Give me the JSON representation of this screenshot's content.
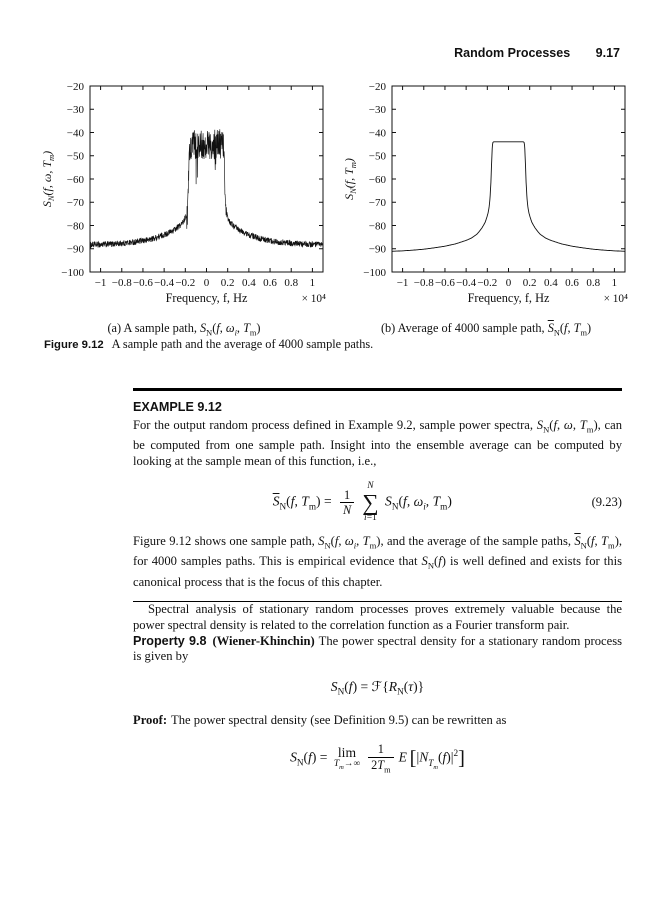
{
  "header": {
    "title": "Random Processes",
    "page_number": "9.17"
  },
  "figure_caption": {
    "label": "Figure 9.12",
    "text": "A sample path and the average of 4000 sample paths."
  },
  "example": {
    "heading": "EXAMPLE 9.12",
    "body1_html": "For the output random process defined in Example 9.2, sample power spectra, <i>S</i><sub>N</sub>(<i>f</i>, <i>ω</i>, <i>T</i><sub>m</sub>), can be computed from one sample path. Insight into the ensemble average can be computed by looking at the sample mean of this function, i.e.,",
    "eq_html": "<span class='ovl'><i>S</i></span><sub>N</sub>(<i>f</i>, <i>T</i><sub>m</sub>) = <span class='frac'><span>1</span><span><i>N</i></span></span><span class='bigop'><span class='bt'><i>N</i></span><span class='sg'>∑</span><span class='bb'><i>i</i>=1</span></span> <i>S</i><sub>N</sub>(<i>f</i>, <i>ω<sub>i</sub></i>, <i>T</i><sub>m</sub>)",
    "eq_number": "(9.23)",
    "body2_html": "Figure 9.12 shows one sample path, <i>S</i><sub>N</sub>(<i>f</i>, <i>ω<sub>i</sub></i>, <i>T</i><sub>m</sub>), and the average of the sample paths, <span class='ovl'><i>S</i></span><sub>N</sub>(<i>f</i>, <i>T</i><sub>m</sub>), for 4000 samples paths. This is empirical evidence that <i>S</i><sub>N</sub>(<i>f</i>) is well defined and exists for this canonical process that is the focus of this chapter."
  },
  "para_spectral": "Spectral analysis of stationary random processes proves extremely valuable because the power spectral density is related to the correlation function as a Fourier transform pair.",
  "property": {
    "label": "Property 9.8",
    "name": "(Wiener-Khinchin)",
    "body": "The power spectral density for a stationary random process is given by"
  },
  "eq_wiener_html": "<i>S</i><sub>N</sub>(<i>f</i>) = ℱ{<i>R</i><sub>N</sub>(<i>τ</i>)}",
  "proof": {
    "label": "Proof:",
    "body": "The power spectral density (see Definition 9.5) can be rewritten as"
  },
  "eq_psd_html": "<i>S</i><sub>N</sub>(<i>f</i>) = <span class='limop'><span>lim</span><span class='bb'><i>T<sub>m</sub></i>→∞</span></span><span class='frac'><span>1</span><span>2<i>T</i><sub>m</sub></span></span><i>E</i>&thinsp;<span class='bk'>[</span>|<i>N</i><sub><i>T<sub>m</sub></i></sub>(<i>f</i>)|<sup>2</sup><span class='bk'>]</span>",
  "chart_data": [
    {
      "type": "line",
      "series_name": "one sample power spectrum S_N(f, omega_i, T_m)",
      "xlabel": "Frequency, f, Hz",
      "x_multiplier": "× 10⁴",
      "ylabel_html": "S<sub>N</sub>(f, ω, T<sub>m</sub>)",
      "caption_html": "(a) A sample path, <i>S</i><sub>N</sub>(<i>f</i>, <i>ω<sub>i</sub></i>, <i>T</i><sub>m</sub>)",
      "xlim": [
        -1.1,
        1.1
      ],
      "ylim": [
        -100,
        -20
      ],
      "xticks": [
        -1,
        -0.8,
        -0.6,
        -0.4,
        -0.2,
        0,
        0.2,
        0.4,
        0.6,
        0.8,
        1
      ],
      "yticks": [
        -100,
        -90,
        -80,
        -70,
        -60,
        -50,
        -40,
        -30,
        -20
      ],
      "grid": false,
      "symmetric": true,
      "envelope_abs": [
        [
          0,
          -45
        ],
        [
          0.15,
          -45
        ],
        [
          0.163,
          -46
        ],
        [
          0.168,
          -52
        ],
        [
          0.172,
          -62
        ],
        [
          0.178,
          -70
        ],
        [
          0.185,
          -74
        ],
        [
          0.2,
          -76.5
        ],
        [
          0.22,
          -78.5
        ],
        [
          0.25,
          -80
        ],
        [
          0.3,
          -81.8
        ],
        [
          0.35,
          -83
        ],
        [
          0.4,
          -84
        ],
        [
          0.5,
          -85.6
        ],
        [
          0.6,
          -86.6
        ],
        [
          0.7,
          -87.2
        ],
        [
          0.8,
          -87.7
        ],
        [
          0.9,
          -88
        ],
        [
          1.0,
          -88.2
        ],
        [
          1.1,
          -88.3
        ]
      ],
      "noise": {
        "in_band_halfwidth": 0.16,
        "in_band_amp": 6.5,
        "out_band_amp": 1.3,
        "transition_zone_end": 0.19,
        "transition_spike_amp": 9,
        "deep_dip_prob": 0.02,
        "deep_dip_extra": 16
      },
      "samples": 1100
    },
    {
      "type": "line",
      "series_name": "average of 4000 sample power spectra",
      "xlabel": "Frequency, f, Hz",
      "x_multiplier": "× 10⁴",
      "ylabel_html": "S<sub>N</sub>(f, T<sub>m</sub>)",
      "caption_html": "(b) Average of 4000 sample path, <span class='ovl'><i>S</i></span><sub>N</sub>(<i>f</i>, <i>T</i><sub>m</sub>)",
      "xlim": [
        -1.1,
        1.1
      ],
      "ylim": [
        -100,
        -20
      ],
      "xticks": [
        -1,
        -0.8,
        -0.6,
        -0.4,
        -0.2,
        0,
        0.2,
        0.4,
        0.6,
        0.8,
        1
      ],
      "yticks": [
        -100,
        -90,
        -80,
        -70,
        -60,
        -50,
        -40,
        -30,
        -20
      ],
      "grid": false,
      "symmetric": true,
      "envelope_abs": [
        [
          0,
          -44
        ],
        [
          0.1,
          -44
        ],
        [
          0.14,
          -44
        ],
        [
          0.148,
          -44.3
        ],
        [
          0.153,
          -46
        ],
        [
          0.157,
          -50
        ],
        [
          0.161,
          -55
        ],
        [
          0.166,
          -61
        ],
        [
          0.172,
          -66.5
        ],
        [
          0.18,
          -71
        ],
        [
          0.19,
          -74
        ],
        [
          0.2,
          -75.8
        ],
        [
          0.22,
          -78.6
        ],
        [
          0.25,
          -81
        ],
        [
          0.28,
          -82.8
        ],
        [
          0.3,
          -83.8
        ],
        [
          0.35,
          -85.4
        ],
        [
          0.4,
          -86.4
        ],
        [
          0.5,
          -87.9
        ],
        [
          0.6,
          -88.9
        ],
        [
          0.7,
          -89.6
        ],
        [
          0.8,
          -90.2
        ],
        [
          0.9,
          -90.6
        ],
        [
          1.0,
          -90.9
        ],
        [
          1.1,
          -91.1
        ]
      ],
      "noise": null,
      "samples": 700
    }
  ]
}
